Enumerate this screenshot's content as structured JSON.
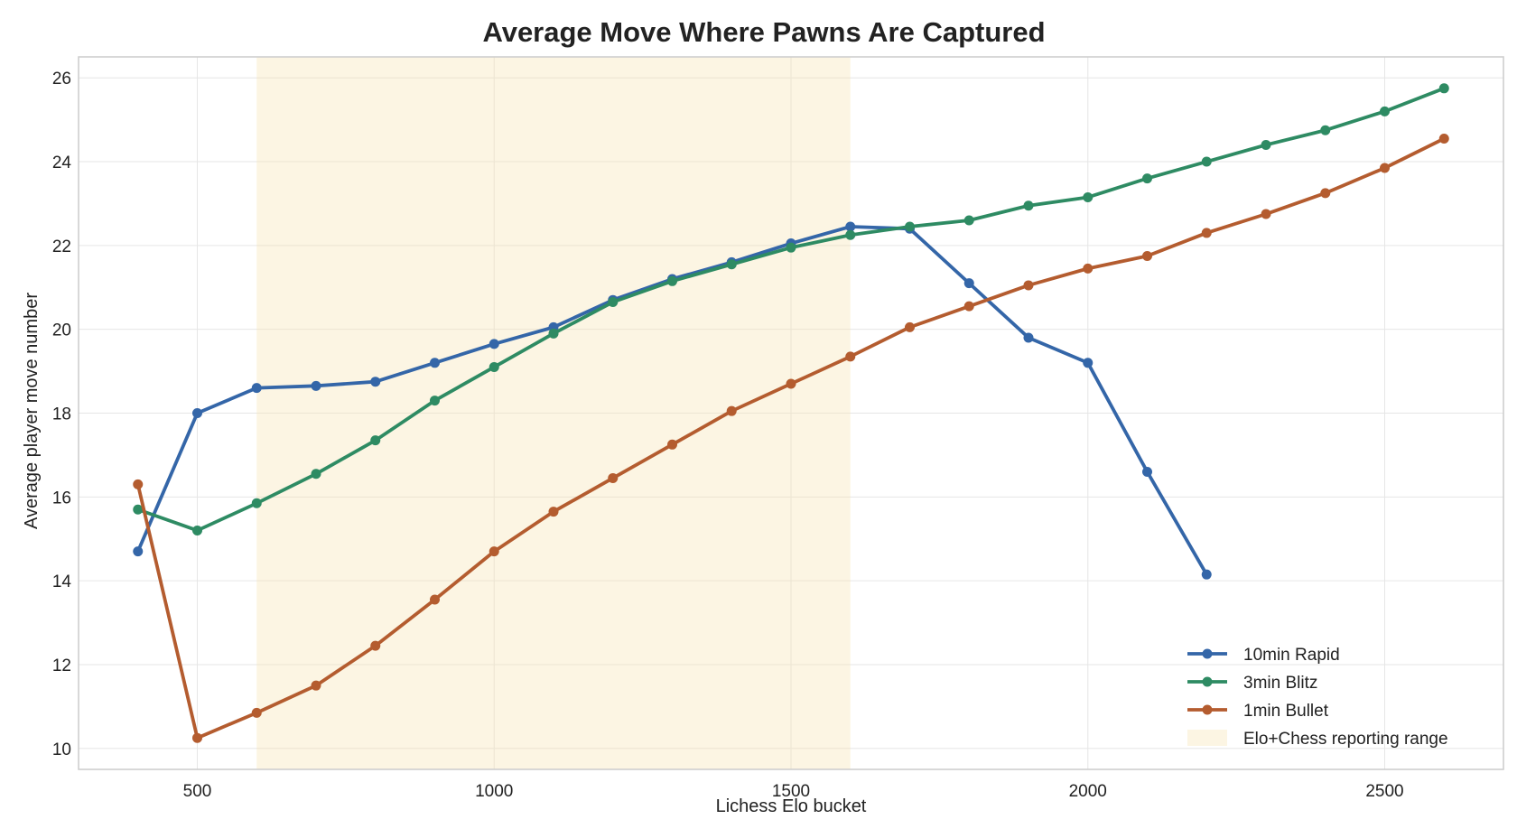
{
  "chart_data": {
    "type": "line",
    "title": "Average Move Where Pawns Are Captured",
    "xlabel": "Lichess Elo bucket",
    "ylabel": "Average player move number",
    "xlim": [
      300,
      2700
    ],
    "ylim": [
      9.5,
      26.5
    ],
    "xticks": [
      500,
      1000,
      1500,
      2000,
      2500
    ],
    "yticks": [
      10,
      12,
      14,
      16,
      18,
      20,
      22,
      24,
      26
    ],
    "grid": true,
    "legend_position": "lower-right",
    "shaded_range": {
      "label": "Elo+Chess reporting range",
      "x_start": 600,
      "x_end": 1600,
      "color": "#f6e3b0"
    },
    "series": [
      {
        "name": "10min Rapid",
        "color": "#3466a8",
        "x": [
          400,
          500,
          600,
          700,
          800,
          900,
          1000,
          1100,
          1200,
          1300,
          1400,
          1500,
          1600,
          1700,
          1800,
          1900,
          2000,
          2100,
          2200
        ],
        "values": [
          14.7,
          18.0,
          18.6,
          18.65,
          18.75,
          19.2,
          19.65,
          20.05,
          20.7,
          21.2,
          21.6,
          22.05,
          22.45,
          22.4,
          21.1,
          19.8,
          19.2,
          16.6,
          14.15
        ]
      },
      {
        "name": "3min Blitz",
        "color": "#2e8b63",
        "x": [
          400,
          500,
          600,
          700,
          800,
          900,
          1000,
          1100,
          1200,
          1300,
          1400,
          1500,
          1600,
          1700,
          1800,
          1900,
          2000,
          2100,
          2200,
          2300,
          2400,
          2500,
          2600
        ],
        "values": [
          15.7,
          15.2,
          15.85,
          16.55,
          17.35,
          18.3,
          19.1,
          19.9,
          20.65,
          21.15,
          21.55,
          21.95,
          22.25,
          22.45,
          22.6,
          22.95,
          23.15,
          23.6,
          24.0,
          24.4,
          24.75,
          25.2,
          25.75
        ]
      },
      {
        "name": "1min Bullet",
        "color": "#b45c2f",
        "x": [
          400,
          500,
          600,
          700,
          800,
          900,
          1000,
          1100,
          1200,
          1300,
          1400,
          1500,
          1600,
          1700,
          1800,
          1900,
          2000,
          2100,
          2200,
          2300,
          2400,
          2500,
          2600
        ],
        "values": [
          16.3,
          10.25,
          10.85,
          11.5,
          12.45,
          13.55,
          14.7,
          15.65,
          16.45,
          17.25,
          18.05,
          18.7,
          19.35,
          20.05,
          20.55,
          21.05,
          21.45,
          21.75,
          22.3,
          22.75,
          23.25,
          23.85,
          24.55
        ]
      }
    ]
  }
}
